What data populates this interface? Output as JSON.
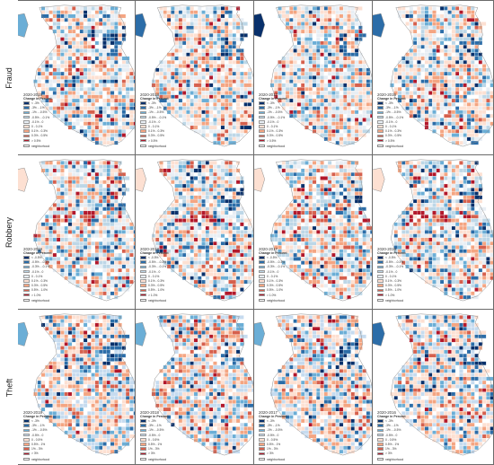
{
  "rows": [
    {
      "label": "Fraud",
      "legend_items": [
        "< -3%",
        "-3% - -1%",
        "-1% - -0.5%",
        "-0.5% - -0.1%",
        "-0.1% - 0",
        "0 - 0.1%",
        "0.1% - 0.3%",
        "0.3% - 0.5%",
        "> 0.5%"
      ],
      "panels": [
        {
          "period": "2020-2019"
        },
        {
          "period": "2020-2018"
        },
        {
          "period": "2020-2017"
        },
        {
          "period": "2020-2016"
        }
      ]
    },
    {
      "label": "Robbery",
      "legend_items": [
        "< -0.5%",
        "-0.5% - -0.3%",
        "-0.3% - -0.1%",
        "-0.1% - 0",
        "0 - 0.1%",
        "0.1% - 0.3%",
        "0.3% - 0.5%",
        "0.5% - 1.0%",
        "> 1.0%"
      ],
      "panels": [
        {
          "period": "2020-2019"
        },
        {
          "period": "2020-2018"
        },
        {
          "period": "2020-2017"
        },
        {
          "period": "2020-2016"
        }
      ]
    },
    {
      "label": "Theft",
      "legend_items": [
        "< -3%",
        "-3% - -1%",
        "-1% - -0.5%",
        "-0.5% - 0",
        "0 - 0.5%",
        "0.5% - 1%",
        "1% - 3%",
        "> 3%"
      ],
      "panels": [
        {
          "period": "2020-2019"
        },
        {
          "period": "2020-2018"
        },
        {
          "period": "2020-2017"
        },
        {
          "period": "2020-2016"
        }
      ]
    }
  ],
  "legend_title": "Change in Percent",
  "neighborhood_label": "neighborhood",
  "colors": {
    "diverging_9": [
      "#08306b",
      "#2c6da8",
      "#6baed6",
      "#bdd7e7",
      "#e8eef4",
      "#fde0d2",
      "#f4a582",
      "#d6604d",
      "#b2182b"
    ],
    "diverging_8": [
      "#08306b",
      "#2c6da8",
      "#6baed6",
      "#c6dbef",
      "#fde0d2",
      "#f4a582",
      "#d6604d",
      "#b2182b"
    ],
    "outline": "#8c8c8c",
    "panel_border": "#6a6a6a"
  }
}
